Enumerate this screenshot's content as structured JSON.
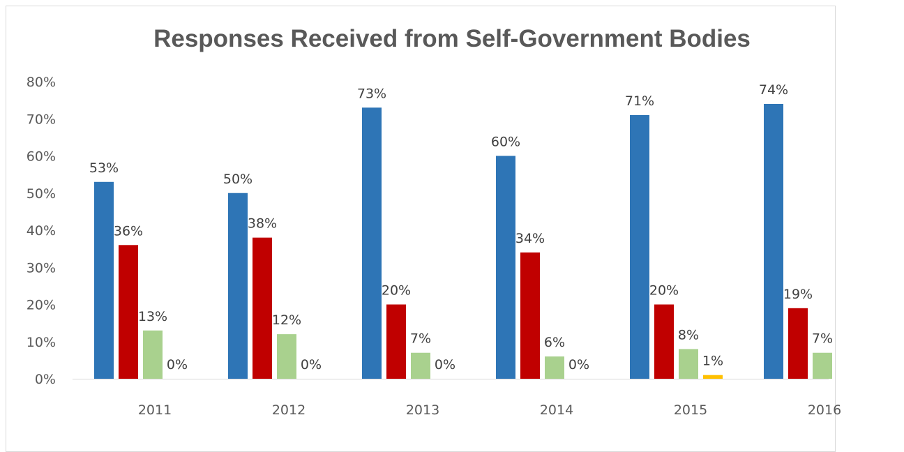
{
  "chart_data": {
    "type": "bar",
    "title": "Responses Received from Self-Government Bodies",
    "xlabel": "",
    "ylabel": "",
    "categories": [
      "2011",
      "2012",
      "2013",
      "2014",
      "2015",
      "2016"
    ],
    "ylim": [
      0,
      80
    ],
    "yticks": [
      "0%",
      "10%",
      "20%",
      "30%",
      "40%",
      "50%",
      "60%",
      "70%",
      "80%"
    ],
    "grid": false,
    "legend": "none",
    "series": [
      {
        "color": "#2E75B6",
        "values": [
          53,
          50,
          73,
          60,
          71,
          74
        ],
        "labels": [
          "53%",
          "50%",
          "73%",
          "60%",
          "71%",
          "74%"
        ]
      },
      {
        "color": "#C00000",
        "values": [
          36,
          38,
          20,
          34,
          20,
          19
        ],
        "labels": [
          "36%",
          "38%",
          "20%",
          "34%",
          "20%",
          "19%"
        ]
      },
      {
        "color": "#A9D18E",
        "values": [
          13,
          12,
          7,
          6,
          8,
          7
        ],
        "labels": [
          "13%",
          "12%",
          "7%",
          "6%",
          "8%",
          "7%"
        ]
      },
      {
        "color": "#FFC000",
        "values": [
          0,
          0,
          0,
          0,
          1,
          null
        ],
        "labels": [
          "0%",
          "0%",
          "0%",
          "0%",
          "1%",
          null
        ]
      }
    ]
  }
}
